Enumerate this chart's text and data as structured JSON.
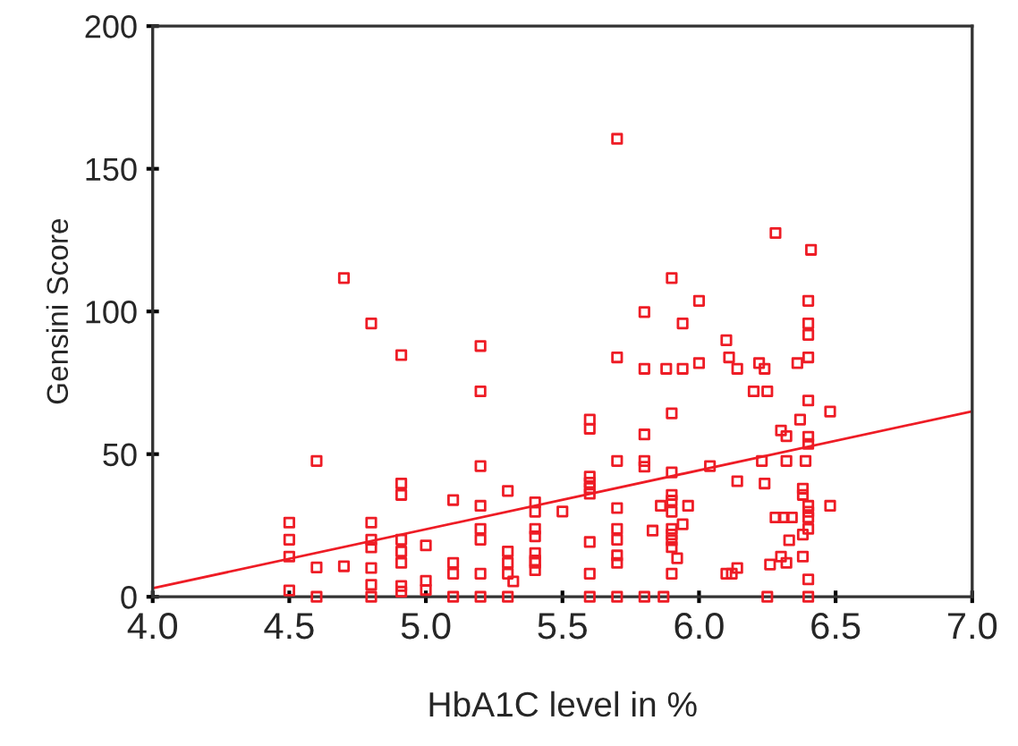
{
  "chart_data": {
    "type": "scatter",
    "xlabel": "HbA1C level in %",
    "ylabel": "Gensini Score",
    "xlim": [
      4.0,
      7.0
    ],
    "ylim": [
      0,
      200
    ],
    "xticks": [
      {
        "value": 4.0,
        "label": "4.0"
      },
      {
        "value": 4.5,
        "label": "4.5"
      },
      {
        "value": 5.0,
        "label": "5.0"
      },
      {
        "value": 5.5,
        "label": "5.5"
      },
      {
        "value": 6.0,
        "label": "6.0"
      },
      {
        "value": 6.5,
        "label": "6.5"
      },
      {
        "value": 7.0,
        "label": "7.0"
      }
    ],
    "yticks": [
      0,
      50,
      100,
      150,
      200
    ],
    "grid": false,
    "series": [
      {
        "marker": "square",
        "color": "#ee1c25",
        "x": [
          4.7,
          5.7,
          6.28,
          6.41,
          5.9,
          6.0,
          6.4,
          5.8,
          4.8,
          4.91,
          5.2,
          5.2,
          4.6,
          4.91,
          4.91,
          5.1,
          5.2,
          5.3,
          5.4,
          5.4,
          5.5,
          4.5,
          4.5,
          4.5,
          4.5,
          4.6,
          4.7,
          4.8,
          4.8,
          4.8,
          4.8,
          4.8,
          4.91,
          4.91,
          4.91,
          4.91,
          4.91,
          5.0,
          5.0,
          5.0,
          5.1,
          5.1,
          5.2,
          5.2,
          5.2,
          5.2,
          5.3,
          5.3,
          5.3,
          5.32,
          5.4,
          5.4,
          5.4,
          5.4,
          5.4,
          5.4,
          4.6,
          4.8,
          5.1,
          5.2,
          5.3,
          5.6,
          5.7,
          5.8,
          5.87,
          6.25,
          6.4,
          5.94,
          6.4,
          6.4,
          6.1,
          5.7,
          6.11,
          6.0,
          6.22,
          6.36,
          6.4,
          5.8,
          5.88,
          5.94,
          6.14,
          6.24,
          6.2,
          6.25,
          6.4,
          6.48,
          5.9,
          5.6,
          5.6,
          6.3,
          6.32,
          6.37,
          6.4,
          6.4,
          5.8,
          5.7,
          5.8,
          5.8,
          5.9,
          6.04,
          6.23,
          6.32,
          6.39,
          6.14,
          6.24,
          6.38,
          6.38,
          5.6,
          5.6,
          5.6,
          5.6,
          5.7,
          5.86,
          5.9,
          5.9,
          5.9,
          5.96,
          6.4,
          6.4,
          6.4,
          6.48,
          6.28,
          6.31,
          6.34,
          5.6,
          5.6,
          5.7,
          5.7,
          5.7,
          5.7,
          5.83,
          5.9,
          5.9,
          5.9,
          5.9,
          5.94,
          5.92,
          5.9,
          6.4,
          6.38,
          6.33,
          6.3,
          6.38,
          6.32,
          6.26,
          6.1,
          6.12,
          6.14,
          6.4
        ],
        "values": [
          111.7,
          160.5,
          127.5,
          121.6,
          111.7,
          103.7,
          103.7,
          99.8,
          95.8,
          84.7,
          87.9,
          72.0,
          47.6,
          39.7,
          35.7,
          33.9,
          45.8,
          37.1,
          33.1,
          29.8,
          29.9,
          26.0,
          20.0,
          14.1,
          2.2,
          10.3,
          10.7,
          26.0,
          20.0,
          17.3,
          10.1,
          4.2,
          20.0,
          15.9,
          11.9,
          3.8,
          1.8,
          18.0,
          5.6,
          2.4,
          11.9,
          8.1,
          31.9,
          23.8,
          20.0,
          8.1,
          15.9,
          11.9,
          8.1,
          5.4,
          23.8,
          21.2,
          15.3,
          12.7,
          11.9,
          9.3,
          0,
          0,
          0,
          0,
          0,
          0,
          0,
          0,
          0,
          0,
          0,
          95.8,
          95.8,
          91.8,
          89.9,
          83.9,
          83.9,
          81.9,
          81.9,
          81.9,
          83.9,
          79.9,
          79.9,
          79.9,
          79.9,
          79.9,
          72.0,
          72.0,
          68.8,
          64.9,
          64.3,
          62.1,
          58.9,
          58.3,
          56.3,
          62.1,
          56.1,
          53.6,
          56.9,
          47.6,
          47.6,
          45.6,
          43.6,
          45.8,
          47.6,
          47.6,
          47.6,
          40.5,
          39.7,
          37.9,
          35.7,
          42.1,
          40.0,
          38.1,
          36.1,
          31.1,
          31.9,
          33.7,
          35.7,
          29.8,
          31.9,
          31.9,
          29.8,
          27.8,
          31.9,
          27.8,
          27.8,
          27.8,
          19.2,
          8.1,
          23.8,
          20.0,
          14.5,
          11.9,
          23.2,
          23.8,
          21.8,
          19.8,
          17.4,
          25.4,
          13.5,
          8.1,
          23.8,
          21.8,
          19.8,
          14.1,
          14.1,
          11.9,
          11.3,
          8.1,
          8.1,
          10.1,
          6.1
        ]
      },
      {
        "type": "line",
        "color": "#ee1c25",
        "x": [
          4.0,
          7.0
        ],
        "values": [
          3.0,
          65.0
        ]
      }
    ]
  }
}
